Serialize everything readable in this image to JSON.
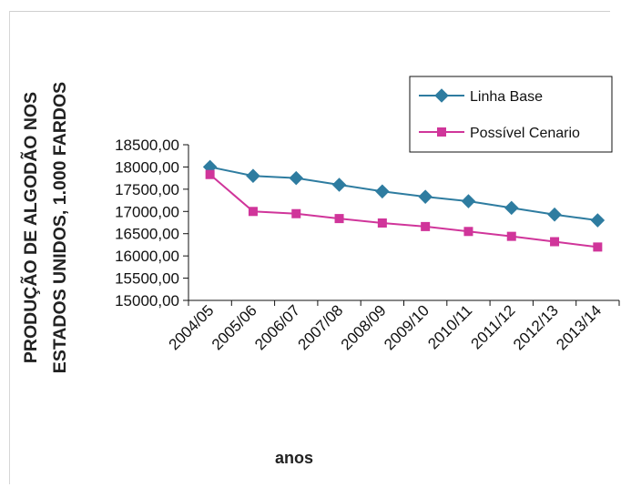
{
  "chart_data": {
    "type": "line",
    "title": "",
    "xlabel": "anos",
    "ylabel_lines": [
      "PRODUÇÃO DE ALGODÃO NOS",
      "ESTADOS UNIDOS, 1.000 FARDOS"
    ],
    "categories": [
      "2004/05",
      "2005/06",
      "2006/07",
      "2007/08",
      "2008/09",
      "2009/10",
      "2010/11",
      "2011/12",
      "2012/13",
      "2013/14"
    ],
    "y_tick_labels": [
      "15000,00",
      "15500,00",
      "16000,00",
      "16500,00",
      "17000,00",
      "17500,00",
      "18000,00",
      "18500,00"
    ],
    "ylim": [
      15000,
      18500
    ],
    "grid": false,
    "legend_position": "top-right",
    "series": [
      {
        "name": "Linha Base",
        "color": "#2E7CA0",
        "marker": "diamond",
        "values": [
          18000,
          17800,
          17750,
          17600,
          17450,
          17330,
          17230,
          17080,
          16930,
          16800
        ]
      },
      {
        "name": "Possível Cenario",
        "color": "#D0359A",
        "marker": "square",
        "values": [
          17830,
          17000,
          16950,
          16840,
          16740,
          16660,
          16550,
          16440,
          16320,
          16200
        ]
      }
    ]
  }
}
